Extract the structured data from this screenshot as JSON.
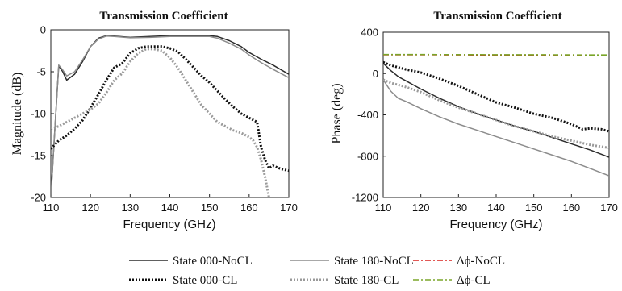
{
  "colors": {
    "state000_nocl": "#2b2b2b",
    "state180_nocl": "#8c8c8c",
    "state000_cl": "#111111",
    "state180_cl": "#9a9a9a",
    "dphi_nocl": "#d9221f",
    "dphi_cl": "#7aa62a"
  },
  "chart_data": [
    {
      "type": "line",
      "title": "Transmission Coefficient",
      "xlabel": "Frequency (GHz)",
      "ylabel": "Magnitude (dB)",
      "xlim": [
        110,
        170
      ],
      "ylim": [
        -20,
        0
      ],
      "xticks": [
        110,
        120,
        130,
        140,
        150,
        160,
        170
      ],
      "yticks": [
        -20,
        -15,
        -10,
        -5,
        0
      ],
      "grid": false,
      "series": [
        {
          "name": "State 000-NoCL",
          "style": "solid",
          "x": [
            110,
            111,
            112,
            113,
            114,
            116,
            118,
            120,
            122,
            124,
            126,
            130,
            135,
            140,
            145,
            150,
            152,
            155,
            158,
            160,
            163,
            166,
            170
          ],
          "y": [
            -20,
            -12,
            -4.3,
            -5.0,
            -6.0,
            -5.3,
            -3.8,
            -2.0,
            -1.0,
            -0.7,
            -0.75,
            -0.9,
            -0.8,
            -0.7,
            -0.7,
            -0.7,
            -0.8,
            -1.3,
            -2.0,
            -2.7,
            -3.5,
            -4.2,
            -5.3
          ]
        },
        {
          "name": "State 180-NoCL",
          "style": "solid",
          "x": [
            110,
            111,
            112,
            113,
            114,
            116,
            118,
            120,
            122,
            124,
            126,
            130,
            135,
            140,
            145,
            150,
            152,
            155,
            158,
            160,
            163,
            166,
            170
          ],
          "y": [
            -20,
            -12,
            -4.2,
            -4.8,
            -5.5,
            -5.0,
            -3.6,
            -2.0,
            -1.1,
            -0.75,
            -0.8,
            -0.95,
            -0.9,
            -0.8,
            -0.8,
            -0.8,
            -1.0,
            -1.6,
            -2.3,
            -3.0,
            -3.9,
            -4.7,
            -5.7
          ]
        },
        {
          "name": "State 000-CL",
          "style": "dotted",
          "x": [
            110,
            112,
            114,
            116,
            118,
            120,
            122,
            124,
            126,
            128,
            130,
            132,
            134,
            136,
            138,
            140,
            142,
            144,
            146,
            148,
            150,
            152,
            154,
            156,
            158,
            160,
            162,
            163,
            164,
            165,
            166,
            168,
            170
          ],
          "y": [
            -14.2,
            -13.2,
            -12.6,
            -11.8,
            -10.8,
            -9.3,
            -7.7,
            -6.0,
            -4.5,
            -4.0,
            -2.8,
            -2.2,
            -2.0,
            -2.0,
            -2.0,
            -2.2,
            -2.6,
            -3.5,
            -4.5,
            -5.5,
            -6.3,
            -7.3,
            -8.3,
            -9.2,
            -10.0,
            -10.5,
            -11.0,
            -14.0,
            -15.5,
            -16.5,
            -16.2,
            -16.6,
            -16.8
          ]
        },
        {
          "name": "State 180-CL",
          "style": "dotted",
          "x": [
            110,
            112,
            114,
            116,
            118,
            120,
            122,
            124,
            126,
            128,
            130,
            132,
            134,
            136,
            138,
            140,
            142,
            144,
            146,
            148,
            150,
            152,
            154,
            156,
            158,
            160,
            161,
            162,
            163,
            164,
            165
          ],
          "y": [
            -11.8,
            -11.5,
            -11.0,
            -10.5,
            -10.0,
            -9.5,
            -8.8,
            -7.5,
            -6.0,
            -5.2,
            -3.8,
            -2.8,
            -2.3,
            -2.3,
            -2.5,
            -3.3,
            -4.5,
            -6.0,
            -7.5,
            -9.0,
            -10.0,
            -11.0,
            -11.5,
            -12.0,
            -12.3,
            -12.8,
            -13.2,
            -14.0,
            -15.5,
            -17.5,
            -20
          ]
        }
      ]
    },
    {
      "type": "line",
      "title": "Transmission Coefficient",
      "xlabel": "Frequency (GHz)",
      "ylabel": "Phase (deg)",
      "xlim": [
        110,
        170
      ],
      "ylim": [
        -1200,
        400
      ],
      "xticks": [
        110,
        120,
        130,
        140,
        150,
        160,
        170
      ],
      "yticks": [
        -1200,
        -800,
        -400,
        0,
        400
      ],
      "grid": false,
      "series": [
        {
          "name": "State 000-NoCL",
          "style": "solid",
          "x": [
            110,
            112,
            114,
            116,
            120,
            125,
            130,
            135,
            140,
            145,
            150,
            155,
            160,
            165,
            170
          ],
          "y": [
            100,
            30,
            -30,
            -70,
            -150,
            -240,
            -320,
            -390,
            -450,
            -510,
            -560,
            -620,
            -680,
            -740,
            -810
          ]
        },
        {
          "name": "State 180-NoCL",
          "style": "solid",
          "x": [
            110,
            112,
            114,
            116,
            120,
            125,
            130,
            135,
            140,
            145,
            150,
            155,
            160,
            165,
            170
          ],
          "y": [
            -60,
            -170,
            -240,
            -270,
            -340,
            -420,
            -490,
            -550,
            -610,
            -670,
            -730,
            -790,
            -850,
            -920,
            -990
          ]
        },
        {
          "name": "State 000-CL",
          "style": "dotted",
          "x": [
            110,
            112,
            114,
            116,
            120,
            125,
            130,
            135,
            140,
            145,
            150,
            155,
            160,
            163,
            165,
            168,
            170
          ],
          "y": [
            110,
            80,
            60,
            40,
            10,
            -50,
            -120,
            -200,
            -280,
            -330,
            -390,
            -430,
            -490,
            -540,
            -530,
            -540,
            -560
          ]
        },
        {
          "name": "State 180-CL",
          "style": "dotted",
          "x": [
            110,
            112,
            114,
            116,
            120,
            125,
            130,
            135,
            140,
            145,
            150,
            155,
            160,
            165,
            170
          ],
          "y": [
            -60,
            -90,
            -110,
            -130,
            -180,
            -260,
            -330,
            -390,
            -450,
            -510,
            -560,
            -610,
            -650,
            -690,
            -720
          ]
        },
        {
          "name": "Δφ-NoCL",
          "style": "dashdot",
          "x": [
            110,
            120,
            130,
            140,
            150,
            160,
            170
          ],
          "y": [
            182,
            182,
            181,
            180,
            179,
            178,
            177
          ]
        },
        {
          "name": "Δφ-CL",
          "style": "dashdot",
          "x": [
            110,
            120,
            130,
            140,
            150,
            160,
            170
          ],
          "y": [
            184,
            184,
            183,
            182,
            182,
            181,
            180
          ]
        }
      ]
    }
  ],
  "legend": {
    "placement": "bottom",
    "items": [
      {
        "label": "State 000-NoCL",
        "style": "solid",
        "color_key": "state000_nocl"
      },
      {
        "label": "State 180-NoCL",
        "style": "solid",
        "color_key": "state180_nocl"
      },
      {
        "label": "Δϕ-NoCL",
        "style": "dashdot",
        "color_key": "dphi_nocl"
      },
      {
        "label": "State 000-CL",
        "style": "dotted",
        "color_key": "state000_cl"
      },
      {
        "label": "State 180-CL",
        "style": "dotted",
        "color_key": "state180_cl"
      },
      {
        "label": "Δϕ-CL",
        "style": "dashdot",
        "color_key": "dphi_cl"
      }
    ]
  }
}
